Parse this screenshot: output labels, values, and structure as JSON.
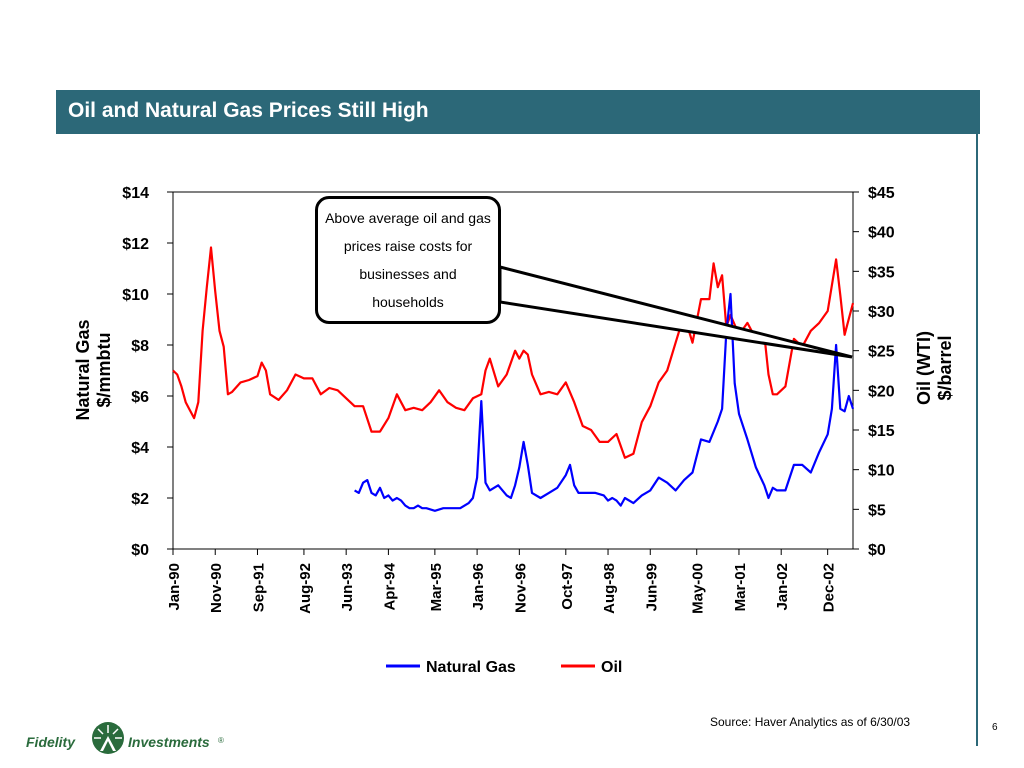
{
  "slide": {
    "title": "Oil and Natural Gas Prices Still High",
    "source": "Source: Haver Analytics as of 6/30/03",
    "page_number": "6",
    "callout": "Above average oil and gas prices raise costs for businesses and households",
    "logo": {
      "left_word": "Fidelity",
      "right_word": "Investments",
      "mark": "®"
    }
  },
  "colors": {
    "title_bar": "#2c6878",
    "natural_gas": "#0000ff",
    "oil": "#ff0000",
    "logo": "#2a6b3c"
  },
  "chart_data": {
    "type": "line",
    "title": "",
    "y_left": {
      "label_line1": "Natural Gas",
      "label_line2": "$/mmbtu",
      "range": [
        0,
        14
      ],
      "ticks": [
        0,
        2,
        4,
        6,
        8,
        10,
        12,
        14
      ],
      "tick_labels": [
        "$0",
        "$2",
        "$4",
        "$6",
        "$8",
        "$10",
        "$12",
        "$14"
      ]
    },
    "y_right": {
      "label_line1": "Oil (WTI)",
      "label_line2": "$/barrel",
      "range": [
        0,
        45
      ],
      "ticks": [
        0,
        5,
        10,
        15,
        20,
        25,
        30,
        35,
        40,
        45
      ],
      "tick_labels": [
        "$0",
        "$5",
        "$10",
        "$15",
        "$20",
        "$25",
        "$30",
        "$35",
        "$40",
        "$45"
      ]
    },
    "x_range": [
      "1990-01",
      "2003-06"
    ],
    "x_ticks": [
      {
        "date": "1990-01",
        "label": "Jan-90"
      },
      {
        "date": "1990-11",
        "label": "Nov-90"
      },
      {
        "date": "1991-09",
        "label": "Sep-91"
      },
      {
        "date": "1992-08",
        "label": "Aug-92"
      },
      {
        "date": "1993-06",
        "label": "Jun-93"
      },
      {
        "date": "1994-04",
        "label": "Apr-94"
      },
      {
        "date": "1995-03",
        "label": "Mar-95"
      },
      {
        "date": "1996-01",
        "label": "Jan-96"
      },
      {
        "date": "1996-11",
        "label": "Nov-96"
      },
      {
        "date": "1997-10",
        "label": "Oct-97"
      },
      {
        "date": "1998-08",
        "label": "Aug-98"
      },
      {
        "date": "1999-06",
        "label": "Jun-99"
      },
      {
        "date": "2000-05",
        "label": "May-00"
      },
      {
        "date": "2001-03",
        "label": "Mar-01"
      },
      {
        "date": "2002-01",
        "label": "Jan-02"
      },
      {
        "date": "2002-12",
        "label": "Dec-02"
      }
    ],
    "legend_position": "bottom",
    "series": [
      {
        "name": "Natural Gas",
        "axis": "left",
        "points": [
          [
            "1993-08",
            2.3
          ],
          [
            "1993-09",
            2.2
          ],
          [
            "1993-10",
            2.6
          ],
          [
            "1993-11",
            2.7
          ],
          [
            "1993-12",
            2.2
          ],
          [
            "1994-01",
            2.1
          ],
          [
            "1994-02",
            2.4
          ],
          [
            "1994-03",
            2.0
          ],
          [
            "1994-04",
            2.1
          ],
          [
            "1994-05",
            1.9
          ],
          [
            "1994-06",
            2.0
          ],
          [
            "1994-07",
            1.9
          ],
          [
            "1994-08",
            1.7
          ],
          [
            "1994-09",
            1.6
          ],
          [
            "1994-10",
            1.6
          ],
          [
            "1994-11",
            1.7
          ],
          [
            "1994-12",
            1.6
          ],
          [
            "1995-01",
            1.6
          ],
          [
            "1995-03",
            1.5
          ],
          [
            "1995-05",
            1.6
          ],
          [
            "1995-07",
            1.6
          ],
          [
            "1995-09",
            1.6
          ],
          [
            "1995-11",
            1.8
          ],
          [
            "1995-12",
            2.0
          ],
          [
            "1996-01",
            2.8
          ],
          [
            "1996-02",
            5.8
          ],
          [
            "1996-03",
            2.6
          ],
          [
            "1996-04",
            2.3
          ],
          [
            "1996-06",
            2.5
          ],
          [
            "1996-08",
            2.1
          ],
          [
            "1996-09",
            2.0
          ],
          [
            "1996-10",
            2.5
          ],
          [
            "1996-11",
            3.2
          ],
          [
            "1996-12",
            4.2
          ],
          [
            "1997-01",
            3.3
          ],
          [
            "1997-02",
            2.2
          ],
          [
            "1997-04",
            2.0
          ],
          [
            "1997-06",
            2.2
          ],
          [
            "1997-08",
            2.4
          ],
          [
            "1997-10",
            2.9
          ],
          [
            "1997-11",
            3.3
          ],
          [
            "1997-12",
            2.5
          ],
          [
            "1998-01",
            2.2
          ],
          [
            "1998-03",
            2.2
          ],
          [
            "1998-05",
            2.2
          ],
          [
            "1998-07",
            2.1
          ],
          [
            "1998-08",
            1.9
          ],
          [
            "1998-09",
            2.0
          ],
          [
            "1998-10",
            1.9
          ],
          [
            "1998-11",
            1.7
          ],
          [
            "1998-12",
            2.0
          ],
          [
            "1999-02",
            1.8
          ],
          [
            "1999-04",
            2.1
          ],
          [
            "1999-06",
            2.3
          ],
          [
            "1999-08",
            2.8
          ],
          [
            "1999-10",
            2.6
          ],
          [
            "1999-12",
            2.3
          ],
          [
            "2000-02",
            2.7
          ],
          [
            "2000-04",
            3.0
          ],
          [
            "2000-06",
            4.3
          ],
          [
            "2000-08",
            4.2
          ],
          [
            "2000-10",
            5.0
          ],
          [
            "2000-11",
            5.5
          ],
          [
            "2000-12",
            8.5
          ],
          [
            "2001-01",
            10.0
          ],
          [
            "2001-02",
            6.5
          ],
          [
            "2001-03",
            5.3
          ],
          [
            "2001-05",
            4.3
          ],
          [
            "2001-07",
            3.2
          ],
          [
            "2001-09",
            2.5
          ],
          [
            "2001-10",
            2.0
          ],
          [
            "2001-11",
            2.4
          ],
          [
            "2001-12",
            2.3
          ],
          [
            "2002-02",
            2.3
          ],
          [
            "2002-04",
            3.3
          ],
          [
            "2002-06",
            3.3
          ],
          [
            "2002-08",
            3.0
          ],
          [
            "2002-10",
            3.8
          ],
          [
            "2002-12",
            4.5
          ],
          [
            "2003-01",
            5.5
          ],
          [
            "2003-02",
            8.0
          ],
          [
            "2003-03",
            5.5
          ],
          [
            "2003-04",
            5.4
          ],
          [
            "2003-05",
            6.0
          ],
          [
            "2003-06",
            5.5
          ]
        ]
      },
      {
        "name": "Oil",
        "axis": "right",
        "points": [
          [
            "1990-01",
            22.5
          ],
          [
            "1990-02",
            22.0
          ],
          [
            "1990-03",
            20.5
          ],
          [
            "1990-04",
            18.5
          ],
          [
            "1990-05",
            17.5
          ],
          [
            "1990-06",
            16.5
          ],
          [
            "1990-07",
            18.5
          ],
          [
            "1990-08",
            27.5
          ],
          [
            "1990-09",
            33.0
          ],
          [
            "1990-10",
            38.0
          ],
          [
            "1990-11",
            32.5
          ],
          [
            "1990-12",
            27.5
          ],
          [
            "1991-01",
            25.5
          ],
          [
            "1991-02",
            19.5
          ],
          [
            "1991-03",
            19.8
          ],
          [
            "1991-05",
            21.0
          ],
          [
            "1991-07",
            21.3
          ],
          [
            "1991-09",
            21.8
          ],
          [
            "1991-10",
            23.5
          ],
          [
            "1991-11",
            22.5
          ],
          [
            "1991-12",
            19.5
          ],
          [
            "1992-02",
            18.8
          ],
          [
            "1992-04",
            20.0
          ],
          [
            "1992-06",
            22.0
          ],
          [
            "1992-08",
            21.5
          ],
          [
            "1992-10",
            21.5
          ],
          [
            "1992-12",
            19.5
          ],
          [
            "1993-02",
            20.3
          ],
          [
            "1993-04",
            20.0
          ],
          [
            "1993-06",
            19.0
          ],
          [
            "1993-08",
            18.0
          ],
          [
            "1993-10",
            18.0
          ],
          [
            "1993-12",
            14.8
          ],
          [
            "1994-02",
            14.8
          ],
          [
            "1994-04",
            16.5
          ],
          [
            "1994-06",
            19.5
          ],
          [
            "1994-08",
            17.5
          ],
          [
            "1994-10",
            17.8
          ],
          [
            "1994-12",
            17.5
          ],
          [
            "1995-02",
            18.5
          ],
          [
            "1995-04",
            20.0
          ],
          [
            "1995-06",
            18.5
          ],
          [
            "1995-08",
            17.8
          ],
          [
            "1995-10",
            17.5
          ],
          [
            "1995-12",
            19.0
          ],
          [
            "1996-02",
            19.5
          ],
          [
            "1996-03",
            22.5
          ],
          [
            "1996-04",
            24.0
          ],
          [
            "1996-06",
            20.5
          ],
          [
            "1996-08",
            22.0
          ],
          [
            "1996-10",
            25.0
          ],
          [
            "1996-11",
            24.0
          ],
          [
            "1996-12",
            25.0
          ],
          [
            "1997-01",
            24.5
          ],
          [
            "1997-02",
            22.0
          ],
          [
            "1997-04",
            19.5
          ],
          [
            "1997-06",
            19.8
          ],
          [
            "1997-08",
            19.5
          ],
          [
            "1997-10",
            21.0
          ],
          [
            "1997-12",
            18.5
          ],
          [
            "1998-02",
            15.5
          ],
          [
            "1998-04",
            15.0
          ],
          [
            "1998-06",
            13.5
          ],
          [
            "1998-08",
            13.5
          ],
          [
            "1998-10",
            14.5
          ],
          [
            "1998-12",
            11.5
          ],
          [
            "1999-02",
            12.0
          ],
          [
            "1999-04",
            16.0
          ],
          [
            "1999-06",
            18.0
          ],
          [
            "1999-08",
            21.0
          ],
          [
            "1999-10",
            22.5
          ],
          [
            "1999-12",
            26.0
          ],
          [
            "2000-02",
            29.5
          ],
          [
            "2000-04",
            26.0
          ],
          [
            "2000-06",
            31.5
          ],
          [
            "2000-08",
            31.5
          ],
          [
            "2000-09",
            36.0
          ],
          [
            "2000-10",
            33.0
          ],
          [
            "2000-11",
            34.5
          ],
          [
            "2000-12",
            28.0
          ],
          [
            "2001-01",
            29.5
          ],
          [
            "2001-03",
            27.0
          ],
          [
            "2001-05",
            28.5
          ],
          [
            "2001-07",
            26.5
          ],
          [
            "2001-09",
            27.0
          ],
          [
            "2001-10",
            22.0
          ],
          [
            "2001-11",
            19.5
          ],
          [
            "2001-12",
            19.5
          ],
          [
            "2002-02",
            20.5
          ],
          [
            "2002-04",
            26.5
          ],
          [
            "2002-06",
            25.5
          ],
          [
            "2002-08",
            27.5
          ],
          [
            "2002-10",
            28.5
          ],
          [
            "2002-12",
            30.0
          ],
          [
            "2003-02",
            36.5
          ],
          [
            "2003-03",
            32.0
          ],
          [
            "2003-04",
            27.0
          ],
          [
            "2003-05",
            29.0
          ],
          [
            "2003-06",
            31.0
          ]
        ]
      }
    ]
  }
}
